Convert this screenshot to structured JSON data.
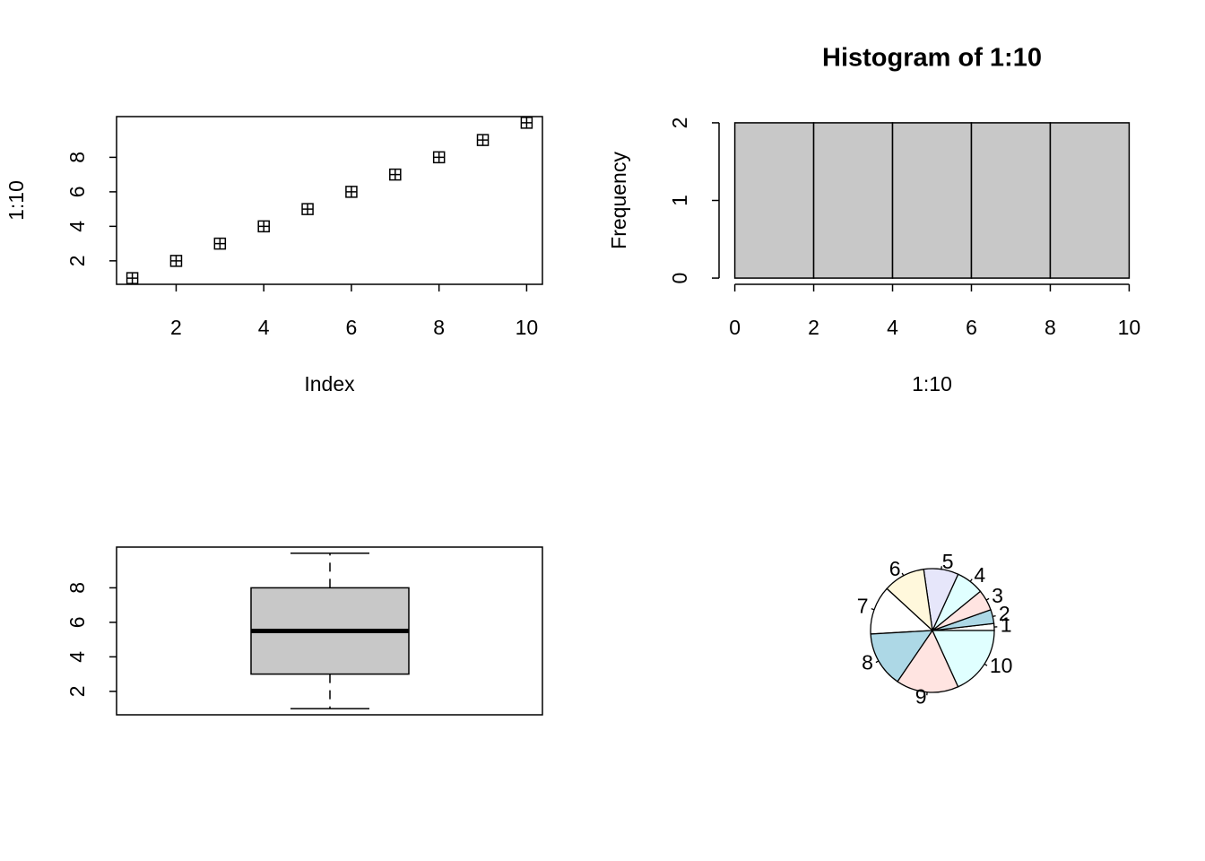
{
  "chart_data": [
    {
      "type": "scatter",
      "x": [
        1,
        2,
        3,
        4,
        5,
        6,
        7,
        8,
        9,
        10
      ],
      "values": [
        1,
        2,
        3,
        4,
        5,
        6,
        7,
        8,
        9,
        10
      ],
      "xlabel": "Index",
      "ylabel": "1:10",
      "xlim": [
        0.64,
        10.36
      ],
      "ylim": [
        0.64,
        10.36
      ],
      "xticks": [
        2,
        4,
        6,
        8,
        10
      ],
      "yticks": [
        2,
        4,
        6,
        8
      ],
      "color": "#000000"
    },
    {
      "type": "histogram",
      "title": "Histogram of 1:10",
      "xlabel": "1:10",
      "ylabel": "Frequency",
      "bins": [
        0,
        2,
        4,
        6,
        8,
        10
      ],
      "values": [
        2,
        2,
        2,
        2,
        2
      ],
      "xlim": [
        -0.4,
        10.4
      ],
      "ylim": [
        -0.08,
        2.08
      ],
      "xticks": [
        0,
        2,
        4,
        6,
        8,
        10
      ],
      "yticks": [
        0,
        1,
        2
      ],
      "color": "#c8c8c8"
    },
    {
      "type": "box",
      "min": 1,
      "q1": 3,
      "median": 5.5,
      "q3": 8,
      "max": 10,
      "ylim": [
        0.64,
        10.36
      ],
      "yticks": [
        2,
        4,
        6,
        8
      ],
      "color": "#c8c8c8"
    },
    {
      "type": "pie",
      "categories": [
        "1",
        "2",
        "3",
        "4",
        "5",
        "6",
        "7",
        "8",
        "9",
        "10"
      ],
      "values": [
        1,
        2,
        3,
        4,
        5,
        6,
        7,
        8,
        9,
        10
      ],
      "colors": [
        "#ffffff",
        "#add8e6",
        "#ffe4e1",
        "#e0ffff",
        "#e6e6fa",
        "#fff8dc",
        "#ffffff",
        "#add8e6",
        "#ffe4e1",
        "#e0ffff"
      ]
    }
  ]
}
